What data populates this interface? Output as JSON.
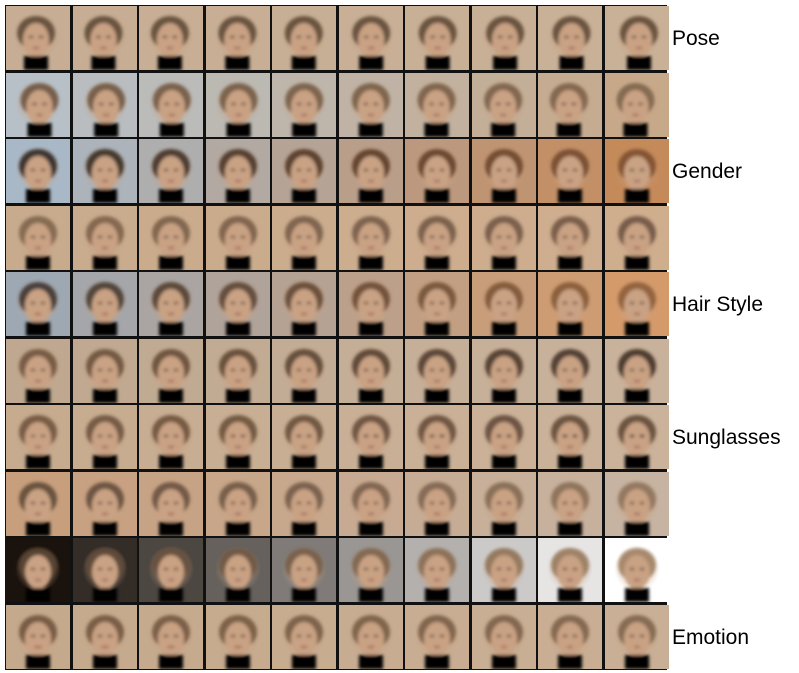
{
  "figure": {
    "row_labels": [
      {
        "row": 0,
        "text": "Pose"
      },
      {
        "row": 2,
        "text": "Gender"
      },
      {
        "row": 4,
        "text": "Hair Style"
      },
      {
        "row": 6,
        "text": "Sunglasses"
      },
      {
        "row": 9,
        "text": "Emotion"
      }
    ],
    "grid": {
      "rows": 10,
      "cols": 10
    },
    "colors": {
      "background_default": "#c4aa8e",
      "skin": "#c9a183",
      "hair": "#6b5038",
      "light_bg": "#e9ddd0",
      "blue_bg": "#a9b8c6",
      "dark_bg": "#1a120c",
      "white_bg": "#ffffff",
      "orange_bg": "#c58a5a"
    }
  }
}
